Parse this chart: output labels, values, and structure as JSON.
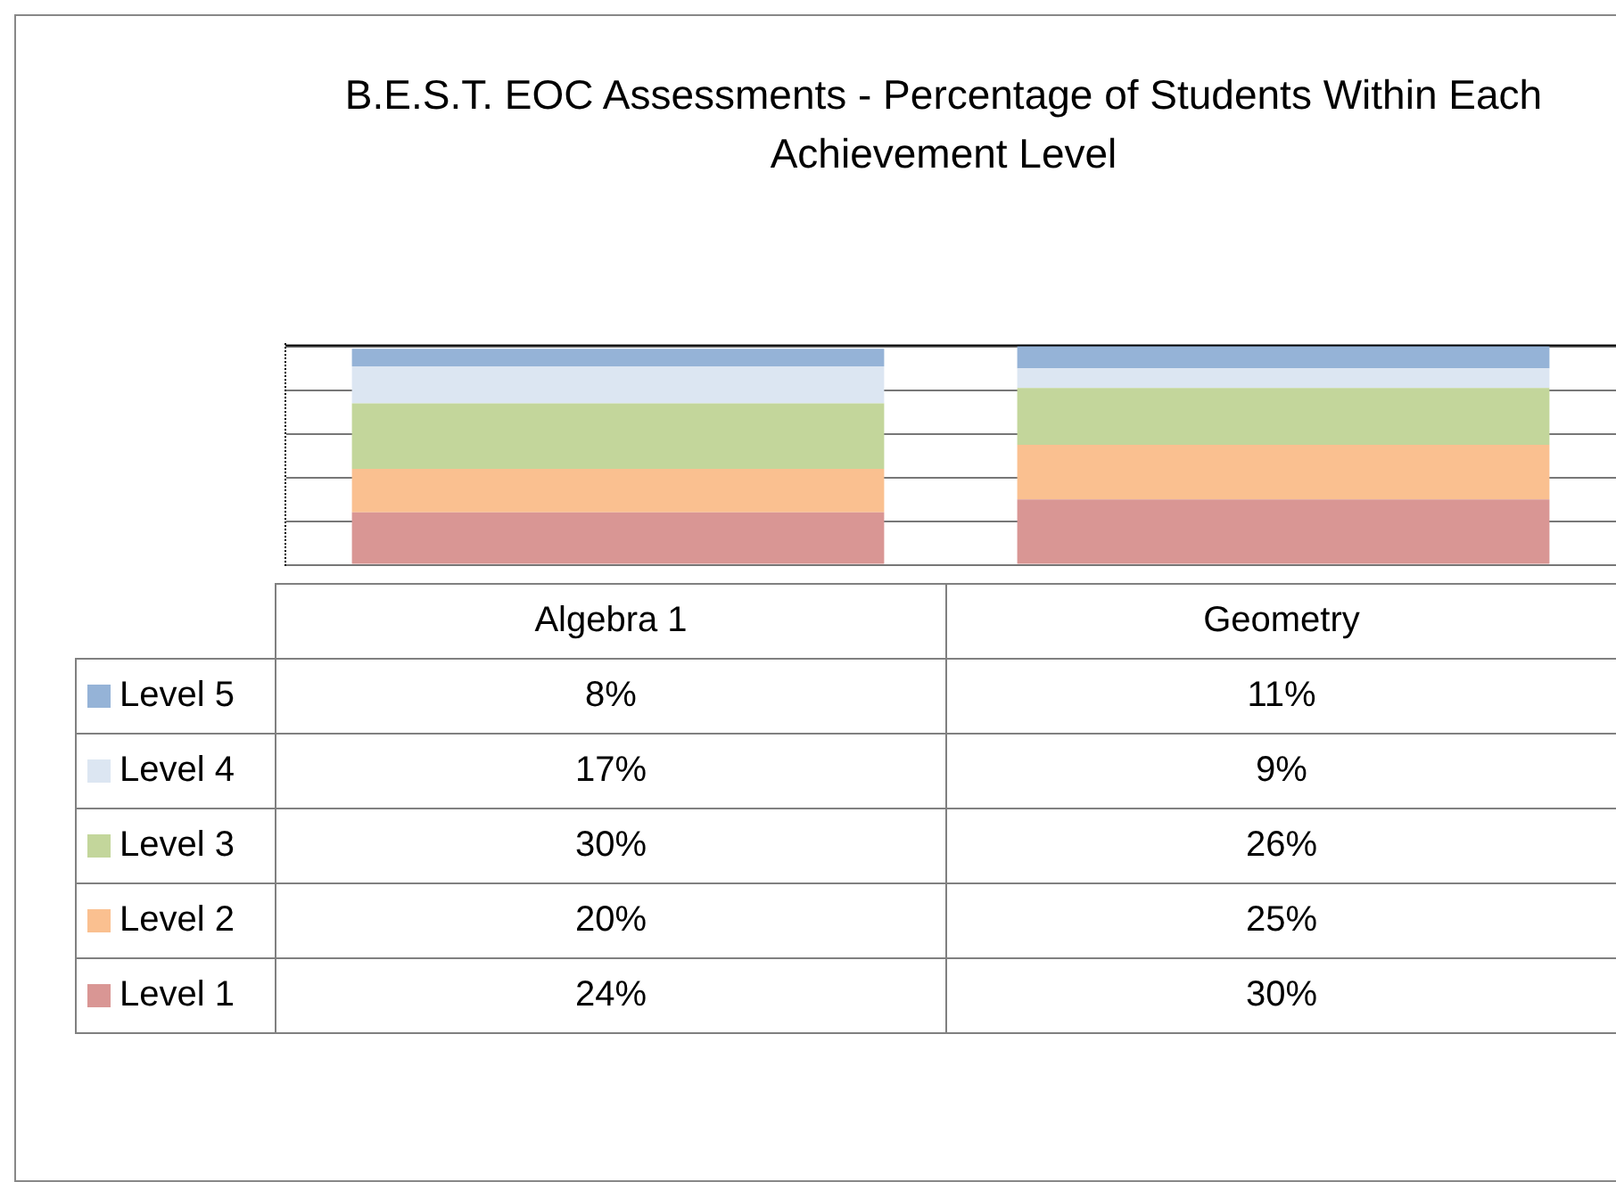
{
  "chart_data": {
    "type": "bar",
    "title": "B.E.S.T. EOC Assessments - Percentage of Students Within Each Achievement Level",
    "categories": [
      "Algebra 1",
      "Geometry"
    ],
    "stacked": true,
    "ylim": [
      0,
      101
    ],
    "yticks": [
      {
        "value": 0,
        "label": null
      },
      {
        "value": 20,
        "label": null
      },
      {
        "value": 40,
        "label": null
      },
      {
        "value": 60,
        "label": null
      },
      {
        "value": 80,
        "label": null
      },
      {
        "value": 100,
        "label": null
      }
    ],
    "grid": "y",
    "legend": "bottom",
    "series": [
      {
        "name": "Level 1",
        "color": "#d99694",
        "values": [
          24,
          30
        ],
        "value_labels": [
          "24%",
          "30%"
        ]
      },
      {
        "name": "Level 2",
        "color": "#fac090",
        "values": [
          20,
          25
        ],
        "value_labels": [
          "20%",
          "25%"
        ]
      },
      {
        "name": "Level 3",
        "color": "#c3d69b",
        "values": [
          30,
          26
        ],
        "value_labels": [
          "30%",
          "26%"
        ]
      },
      {
        "name": "Level 4",
        "color": "#dce6f2",
        "values": [
          17,
          9
        ],
        "value_labels": [
          "17%",
          "9%"
        ]
      },
      {
        "name": "Level 5",
        "color": "#95b3d7",
        "values": [
          8,
          11
        ],
        "value_labels": [
          "8%",
          "11%"
        ]
      }
    ]
  }
}
